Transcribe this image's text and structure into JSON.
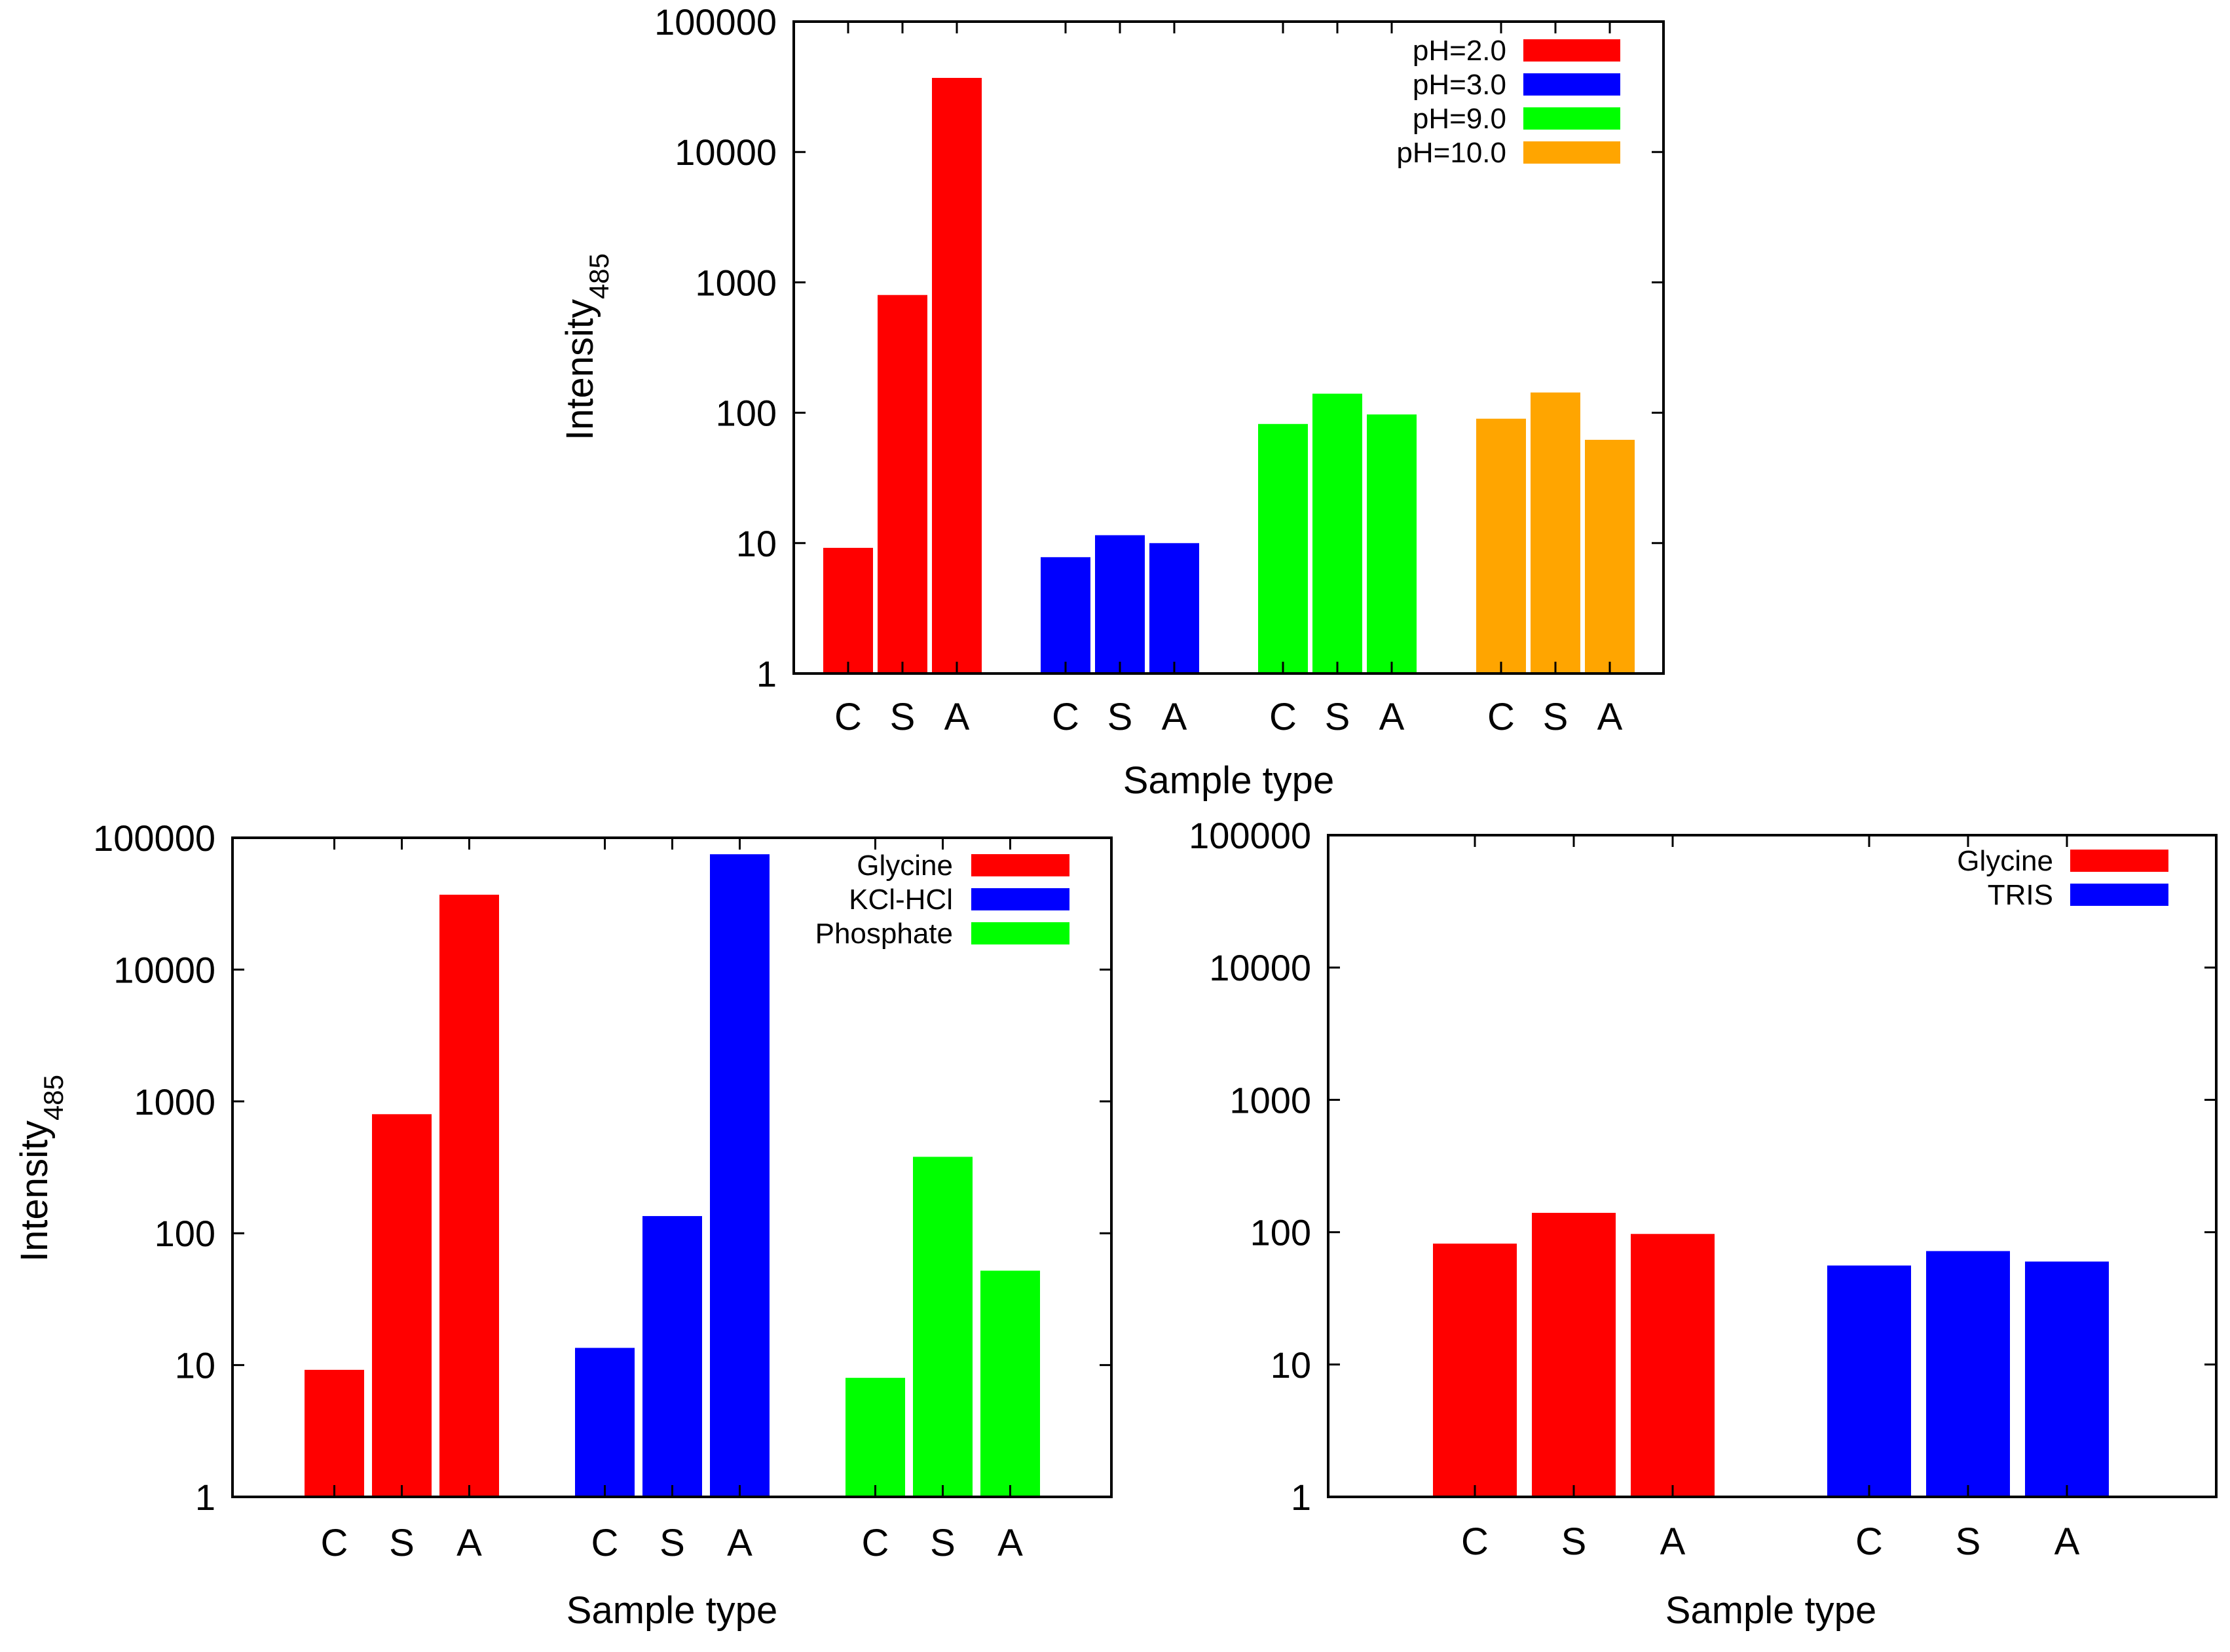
{
  "chart_data": [
    {
      "type": "bar",
      "panel": "top",
      "title": "",
      "xlabel": "Sample type",
      "ylabel": "Intensity",
      "ylabel_sub": "485",
      "yscale": "log",
      "ylim": [
        1,
        100000
      ],
      "yticks": [
        1,
        10,
        100,
        1000,
        10000,
        100000
      ],
      "ytick_labels": [
        "1",
        "10",
        "100",
        "1000",
        "10000",
        "100000"
      ],
      "legend_position": "top-right",
      "groups": [
        {
          "name": "pH=2.0",
          "color": "#ff0000",
          "categories": [
            "C",
            "S",
            "A"
          ],
          "values": [
            9.2,
            800,
            37000
          ]
        },
        {
          "name": "pH=3.0",
          "color": "#0000ff",
          "categories": [
            "C",
            "S",
            "A"
          ],
          "values": [
            7.8,
            11.5,
            10
          ]
        },
        {
          "name": "pH=9.0",
          "color": "#00ff00",
          "categories": [
            "C",
            "S",
            "A"
          ],
          "values": [
            82,
            140,
            97
          ]
        },
        {
          "name": "pH=10.0",
          "color": "#ffa500",
          "categories": [
            "C",
            "S",
            "A"
          ],
          "values": [
            90,
            143,
            62
          ]
        }
      ]
    },
    {
      "type": "bar",
      "panel": "bottom-left",
      "title": "",
      "xlabel": "Sample type",
      "ylabel": "Intensity",
      "ylabel_sub": "485",
      "yscale": "log",
      "ylim": [
        1,
        100000
      ],
      "yticks": [
        1,
        10,
        100,
        1000,
        10000,
        100000
      ],
      "ytick_labels": [
        "1",
        "10",
        "100",
        "1000",
        "10000",
        "100000"
      ],
      "legend_position": "top-right",
      "groups": [
        {
          "name": "Glycine",
          "color": "#ff0000",
          "categories": [
            "C",
            "S",
            "A"
          ],
          "values": [
            9.2,
            800,
            37000
          ]
        },
        {
          "name": "KCl-HCl",
          "color": "#0000ff",
          "categories": [
            "C",
            "S",
            "A"
          ],
          "values": [
            13.5,
            135,
            75000
          ]
        },
        {
          "name": "Phosphate",
          "color": "#00ff00",
          "categories": [
            "C",
            "S",
            "A"
          ],
          "values": [
            8,
            380,
            52
          ]
        }
      ]
    },
    {
      "type": "bar",
      "panel": "bottom-right",
      "title": "",
      "xlabel": "Sample type",
      "ylabel": "",
      "ylabel_sub": "",
      "yscale": "log",
      "ylim": [
        1,
        100000
      ],
      "yticks": [
        1,
        10,
        100,
        1000,
        10000,
        100000
      ],
      "ytick_labels": [
        "1",
        "10",
        "100",
        "1000",
        "10000",
        "100000"
      ],
      "legend_position": "top-right",
      "groups": [
        {
          "name": "Glycine",
          "color": "#ff0000",
          "categories": [
            "C",
            "S",
            "A"
          ],
          "values": [
            82,
            140,
            97
          ]
        },
        {
          "name": "TRIS",
          "color": "#0000ff",
          "categories": [
            "C",
            "S",
            "A"
          ],
          "values": [
            56,
            72,
            60
          ]
        }
      ]
    }
  ]
}
